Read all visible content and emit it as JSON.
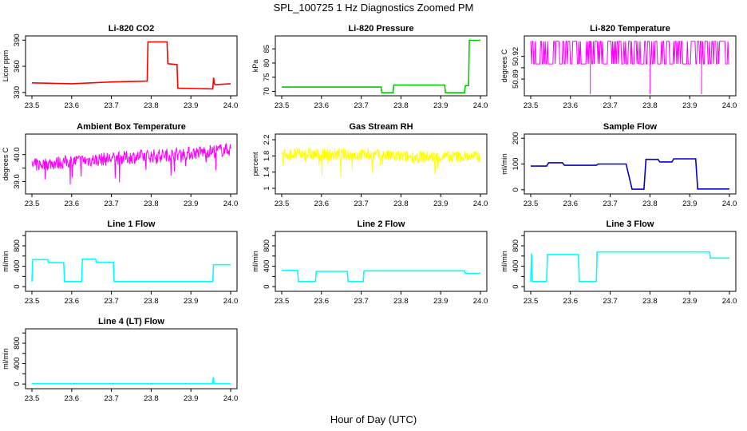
{
  "page": {
    "title": "SPL_100725  1 Hz Diagnostics Zoomed PM",
    "xlabel": "Hour of Day (UTC)"
  },
  "chart_data": [
    {
      "type": "line",
      "title": "Li-820 CO2",
      "ylabel": "Licor ppm",
      "color": "#ff0000",
      "xlim": [
        23.5,
        24.0
      ],
      "ylim": [
        328,
        393
      ],
      "yticks": [
        330,
        360,
        390
      ],
      "xticks": [
        23.5,
        23.6,
        23.7,
        23.8,
        23.9,
        24.0
      ],
      "x": [
        23.5,
        23.6,
        23.7,
        23.79,
        23.792,
        23.84,
        23.842,
        23.865,
        23.867,
        23.955,
        23.957,
        23.959,
        23.961,
        24.0
      ],
      "y": [
        341,
        340,
        342,
        343,
        388,
        388,
        363,
        362,
        335,
        334,
        347,
        340,
        339,
        340
      ]
    },
    {
      "type": "line",
      "title": "Li-820 Pressure",
      "ylabel": "kPa",
      "color": "#00cc00",
      "xlim": [
        23.5,
        24.0
      ],
      "ylim": [
        69,
        89
      ],
      "yticks": [
        70,
        75,
        80,
        85
      ],
      "xticks": [
        23.5,
        23.6,
        23.7,
        23.8,
        23.9,
        24.0
      ],
      "x": [
        23.5,
        23.6,
        23.75,
        23.752,
        23.78,
        23.782,
        23.91,
        23.912,
        23.96,
        23.962,
        23.97,
        23.972,
        24.0
      ],
      "y": [
        71.5,
        71.5,
        71.5,
        69.5,
        69.5,
        72.2,
        72.2,
        69.5,
        69.5,
        72,
        72,
        88,
        88
      ]
    },
    {
      "type": "line",
      "title": "Li-820 Temperature",
      "ylabel": "degrees C",
      "color": "#ff00ff",
      "xlim": [
        23.5,
        24.0
      ],
      "ylim": [
        50.87,
        50.945
      ],
      "yticks": [
        50.89,
        50.905,
        50.92
      ],
      "ytick_labels": [
        "50.89",
        "50.92"
      ],
      "xticks": [
        23.5,
        23.6,
        23.7,
        23.8,
        23.9,
        24.0
      ],
      "base": 50.91,
      "high": 50.94,
      "low": 50.87,
      "dips": [
        23.65,
        23.8,
        23.93
      ]
    },
    {
      "type": "line",
      "title": "Ambient Box Temperature",
      "ylabel": "degrees C",
      "color": "#ff00ff",
      "xlim": [
        23.5,
        24.0
      ],
      "ylim": [
        38.6,
        40.7
      ],
      "yticks": [
        39.0,
        39.5,
        40.0
      ],
      "ytick_labels": [
        "39.0",
        "40.0"
      ],
      "xticks": [
        23.5,
        23.6,
        23.7,
        23.8,
        23.9,
        24.0
      ],
      "x": [
        23.5,
        23.6,
        23.7,
        23.8,
        23.9,
        24.0
      ],
      "y": [
        39.6,
        39.75,
        39.85,
        39.95,
        40.05,
        40.2
      ],
      "noise": 0.25
    },
    {
      "type": "line",
      "title": "Gas Stream RH",
      "ylabel": "percent",
      "color": "#ffff00",
      "xlim": [
        23.5,
        24.0
      ],
      "ylim": [
        0.9,
        2.3
      ],
      "yticks": [
        1.0,
        1.4,
        1.8,
        2.2
      ],
      "xticks": [
        23.5,
        23.6,
        23.7,
        23.8,
        23.9,
        24.0
      ],
      "x": [
        23.5,
        23.75,
        23.8,
        24.0
      ],
      "y": [
        1.85,
        1.82,
        1.78,
        1.78
      ],
      "noise": 0.15
    },
    {
      "type": "line",
      "title": "Sample Flow",
      "ylabel": "ml/min",
      "color": "#0000cc",
      "xlim": [
        23.5,
        24.0
      ],
      "ylim": [
        -10,
        210
      ],
      "yticks": [
        0,
        100,
        200
      ],
      "xticks": [
        23.5,
        23.6,
        23.7,
        23.8,
        23.9,
        24.0
      ],
      "x": [
        23.5,
        23.54,
        23.545,
        23.58,
        23.585,
        23.665,
        23.67,
        23.74,
        23.755,
        23.785,
        23.79,
        23.82,
        23.825,
        23.855,
        23.86,
        23.915,
        23.92,
        24.0
      ],
      "y": [
        92,
        92,
        105,
        105,
        95,
        95,
        100,
        100,
        2,
        2,
        118,
        118,
        108,
        108,
        120,
        120,
        3,
        3
      ]
    },
    {
      "type": "line",
      "title": "Line 1 Flow",
      "ylabel": "ml/min",
      "color": "#00ffff",
      "xlim": [
        23.5,
        24.0
      ],
      "ylim": [
        -60,
        1050
      ],
      "yticks": [
        0,
        400,
        800
      ],
      "minor_yticks": [
        200,
        600,
        1000
      ],
      "xticks": [
        23.5,
        23.6,
        23.7,
        23.8,
        23.9,
        24.0
      ],
      "x": [
        23.5,
        23.502,
        23.54,
        23.542,
        23.58,
        23.582,
        23.625,
        23.627,
        23.66,
        23.662,
        23.705,
        23.707,
        23.955,
        23.957,
        24.0
      ],
      "y": [
        100,
        530,
        530,
        470,
        470,
        100,
        100,
        540,
        540,
        480,
        480,
        100,
        100,
        430,
        430
      ]
    },
    {
      "type": "line",
      "title": "Line 2 Flow",
      "ylabel": "ml/min",
      "color": "#00ffff",
      "xlim": [
        23.5,
        24.0
      ],
      "ylim": [
        -60,
        1050
      ],
      "yticks": [
        0,
        400,
        800
      ],
      "minor_yticks": [
        200,
        600,
        1000
      ],
      "xticks": [
        23.5,
        23.6,
        23.7,
        23.8,
        23.9,
        24.0
      ],
      "x": [
        23.5,
        23.54,
        23.542,
        23.585,
        23.587,
        23.665,
        23.667,
        23.705,
        23.707,
        23.96,
        23.962,
        24.0
      ],
      "y": [
        320,
        320,
        100,
        100,
        300,
        300,
        100,
        100,
        310,
        310,
        260,
        260
      ]
    },
    {
      "type": "line",
      "title": "Line 3 Flow",
      "ylabel": "ml/min",
      "color": "#00ffff",
      "xlim": [
        23.5,
        24.0
      ],
      "ylim": [
        -60,
        1050
      ],
      "yticks": [
        0,
        400,
        800
      ],
      "minor_yticks": [
        200,
        600,
        1000
      ],
      "xticks": [
        23.5,
        23.6,
        23.7,
        23.8,
        23.9,
        24.0
      ],
      "x": [
        23.5,
        23.502,
        23.504,
        23.54,
        23.542,
        23.62,
        23.622,
        23.665,
        23.667,
        23.95,
        23.952,
        24.0
      ],
      "y": [
        100,
        650,
        100,
        100,
        630,
        630,
        100,
        100,
        680,
        680,
        560,
        560
      ]
    },
    {
      "type": "line",
      "title": "Line 4 (LT) Flow",
      "ylabel": "ml/min",
      "color": "#00ffff",
      "xlim": [
        23.5,
        24.0
      ],
      "ylim": [
        -60,
        1050
      ],
      "yticks": [
        0,
        400,
        800
      ],
      "minor_yticks": [
        200,
        600,
        1000
      ],
      "xticks": [
        23.5,
        23.6,
        23.7,
        23.8,
        23.9,
        24.0
      ],
      "x": [
        23.5,
        23.955,
        23.956,
        23.957,
        23.958,
        24.0
      ],
      "y": [
        10,
        10,
        120,
        120,
        10,
        10
      ]
    }
  ]
}
